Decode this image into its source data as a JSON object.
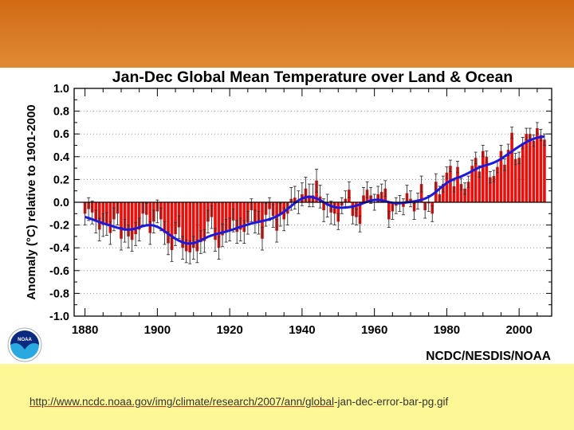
{
  "slide": {
    "link_underlined": "http://www.ncdc.noaa.gov/img/climate/research/2007/ann/global",
    "link_rest": "-jan-dec-error-bar-pg.gif",
    "logo_text": "NOAA",
    "credit": "NCDC/NESDIS/NOAA",
    "colors": {
      "banner": "#d87a25",
      "footer": "#fdf895",
      "bars": "#e8100c",
      "smooth_line": "#1a1adc",
      "error_bars": "#222222"
    }
  },
  "chart_data": {
    "type": "bar",
    "title": "Jan-Dec Global Mean Temperature over Land & Ocean",
    "ylabel": "Anomaly (°C) relative to 1901-2000",
    "xlabel": "",
    "xlim": [
      1877,
      2009
    ],
    "ylim": [
      -1.0,
      1.0
    ],
    "x_ticks": [
      "1880",
      "1900",
      "1920",
      "1940",
      "1960",
      "1980",
      "2000"
    ],
    "y_ticks": [
      "1.0",
      "0.8",
      "0.6",
      "0.4",
      "0.2",
      "0.0",
      "-0.2",
      "-0.4",
      "-0.6",
      "-0.8",
      "-1.0"
    ],
    "grid": "horizontal dotted",
    "start_year": 1880,
    "values": [
      -0.1,
      -0.06,
      -0.09,
      -0.17,
      -0.24,
      -0.2,
      -0.19,
      -0.27,
      -0.15,
      -0.1,
      -0.32,
      -0.25,
      -0.3,
      -0.33,
      -0.28,
      -0.24,
      -0.1,
      -0.11,
      -0.27,
      -0.17,
      -0.08,
      -0.15,
      -0.27,
      -0.36,
      -0.42,
      -0.28,
      -0.22,
      -0.4,
      -0.43,
      -0.44,
      -0.4,
      -0.43,
      -0.35,
      -0.34,
      -0.17,
      -0.13,
      -0.33,
      -0.4,
      -0.29,
      -0.25,
      -0.24,
      -0.16,
      -0.26,
      -0.24,
      -0.26,
      -0.18,
      -0.07,
      -0.17,
      -0.18,
      -0.32,
      -0.11,
      -0.06,
      -0.12,
      -0.25,
      -0.11,
      -0.15,
      -0.1,
      0.03,
      0.04,
      0.0,
      0.07,
      0.12,
      0.06,
      0.06,
      0.19,
      0.05,
      -0.07,
      -0.03,
      -0.09,
      -0.1,
      -0.17,
      -0.03,
      0.03,
      0.11,
      -0.12,
      -0.13,
      -0.19,
      0.06,
      0.11,
      0.06,
      0.0,
      0.07,
      0.09,
      0.12,
      -0.15,
      -0.08,
      -0.03,
      -0.01,
      -0.04,
      0.08,
      0.03,
      -0.08,
      0.01,
      0.16,
      -0.07,
      -0.01,
      -0.1,
      0.18,
      0.07,
      0.16,
      0.26,
      0.32,
      0.14,
      0.31,
      0.16,
      0.12,
      0.18,
      0.32,
      0.39,
      0.27,
      0.45,
      0.4,
      0.22,
      0.23,
      0.31,
      0.45,
      0.33,
      0.46,
      0.61,
      0.38,
      0.39,
      0.52,
      0.6,
      0.6,
      0.54,
      0.65,
      0.59,
      0.55
    ],
    "error_bars": [
      {
        "from": 1880,
        "to": 1949,
        "value": 0.1
      },
      {
        "from": 1950,
        "to": 1979,
        "value": 0.07
      },
      {
        "from": 1980,
        "to": 2007,
        "value": 0.05
      }
    ],
    "smoothed_series": "low-pass filtered annual values (blue line)"
  }
}
